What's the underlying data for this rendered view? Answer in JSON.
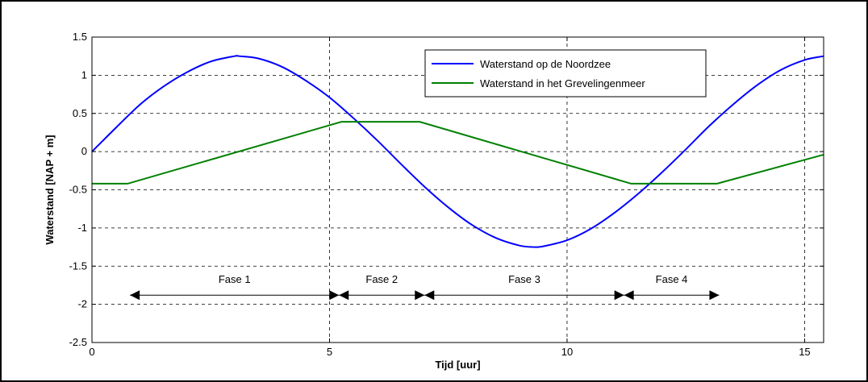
{
  "chart_data": {
    "type": "line",
    "title": "",
    "xlabel": "Tijd [uur]",
    "ylabel": "Waterstand [NAP + m]",
    "xlim": [
      0,
      15.4
    ],
    "ylim": [
      -2.5,
      1.5
    ],
    "xticks": [
      0,
      5,
      10,
      15
    ],
    "xtick_labels": [
      "0",
      "5",
      "10",
      "15"
    ],
    "yticks": [
      1.5,
      1,
      0.5,
      0,
      -0.5,
      -1,
      -1.5,
      -2,
      -2.5
    ],
    "ytick_labels": [
      "1.5",
      "1",
      "0.5",
      "0",
      "-0.5",
      "-1",
      "-1.5",
      "-2",
      "-2.5"
    ],
    "grid": true,
    "legend_position": "top-right",
    "series": [
      {
        "name": "Waterstand op de Noordzee",
        "color": "#0000ff",
        "x": [
          0,
          0.5,
          1,
          1.5,
          2,
          2.5,
          3,
          3.1,
          3.5,
          4,
          4.5,
          5,
          5.5,
          6,
          6.5,
          7,
          7.5,
          8,
          8.5,
          9,
          9.3,
          9.5,
          10,
          10.5,
          11,
          11.5,
          12,
          12.5,
          13,
          13.5,
          14,
          14.5,
          15,
          15.4
        ],
        "y": [
          0,
          0.31,
          0.61,
          0.85,
          1.04,
          1.18,
          1.25,
          1.25,
          1.22,
          1.11,
          0.93,
          0.71,
          0.44,
          0.15,
          -0.16,
          -0.46,
          -0.73,
          -0.96,
          -1.13,
          -1.23,
          -1.25,
          -1.24,
          -1.16,
          -1.01,
          -0.8,
          -0.55,
          -0.27,
          0.03,
          0.34,
          0.62,
          0.87,
          1.07,
          1.2,
          1.25
        ]
      },
      {
        "name": "Waterstand in het Grevelingenmeer",
        "color": "#008000",
        "x": [
          0,
          0.75,
          5.25,
          6.9,
          11.35,
          13.15,
          15.4
        ],
        "y": [
          -0.42,
          -0.42,
          0.39,
          0.39,
          -0.42,
          -0.42,
          -0.04
        ]
      }
    ],
    "phases": [
      {
        "label": "Fase 1",
        "start": 0.8,
        "end": 5.2
      },
      {
        "label": "Fase 2",
        "start": 5.2,
        "end": 7.0
      },
      {
        "label": "Fase 3",
        "start": 7.0,
        "end": 11.2
      },
      {
        "label": "Fase 4",
        "start": 11.2,
        "end": 13.2
      }
    ],
    "phase_y": -1.88,
    "phase_dividers": [
      5,
      10,
      15
    ]
  }
}
